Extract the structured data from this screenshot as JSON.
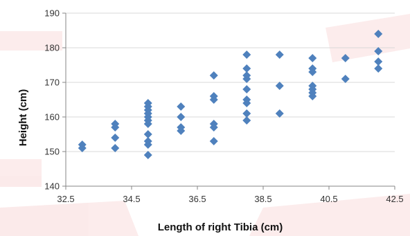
{
  "chart_data": {
    "type": "scatter",
    "title": "",
    "xlabel": "Length of right Tibia (cm)",
    "ylabel": "Height (cm)",
    "xlim": [
      32.5,
      42.5
    ],
    "ylim": [
      140,
      190
    ],
    "x_ticks": [
      "32.5",
      "34.5",
      "36.5",
      "38.5",
      "40.5",
      "42.5"
    ],
    "y_ticks": [
      "140",
      "150",
      "160",
      "170",
      "180",
      "190"
    ],
    "grid": true,
    "legend": "none",
    "marker": "diamond",
    "colors": {
      "marker": "#4f81bd",
      "grid": "#d9d9d9",
      "axis": "#868686",
      "watermark": "#e04040"
    },
    "series": [
      {
        "x": [
          33,
          33,
          34,
          34,
          34,
          34,
          35,
          35,
          35,
          35,
          35,
          35,
          35,
          35,
          35,
          35,
          35,
          36,
          36,
          36,
          36,
          37,
          37,
          37,
          37,
          37,
          37,
          38,
          38,
          38,
          38,
          38,
          38,
          38,
          38,
          38,
          39,
          39,
          39,
          40,
          40,
          40,
          40,
          40,
          40,
          40,
          41,
          41,
          42,
          42,
          42,
          42
        ],
        "y": [
          152,
          151,
          158,
          157,
          154,
          151,
          163,
          162,
          160,
          159,
          158,
          155,
          153,
          152,
          149,
          161,
          164,
          163,
          160,
          157,
          156,
          172,
          166,
          165,
          158,
          157,
          153,
          178,
          174,
          171,
          168,
          165,
          164,
          161,
          159,
          172,
          178,
          169,
          161,
          177,
          174,
          173,
          169,
          168,
          167,
          166,
          177,
          171,
          184,
          179,
          176,
          174
        ]
      }
    ]
  }
}
